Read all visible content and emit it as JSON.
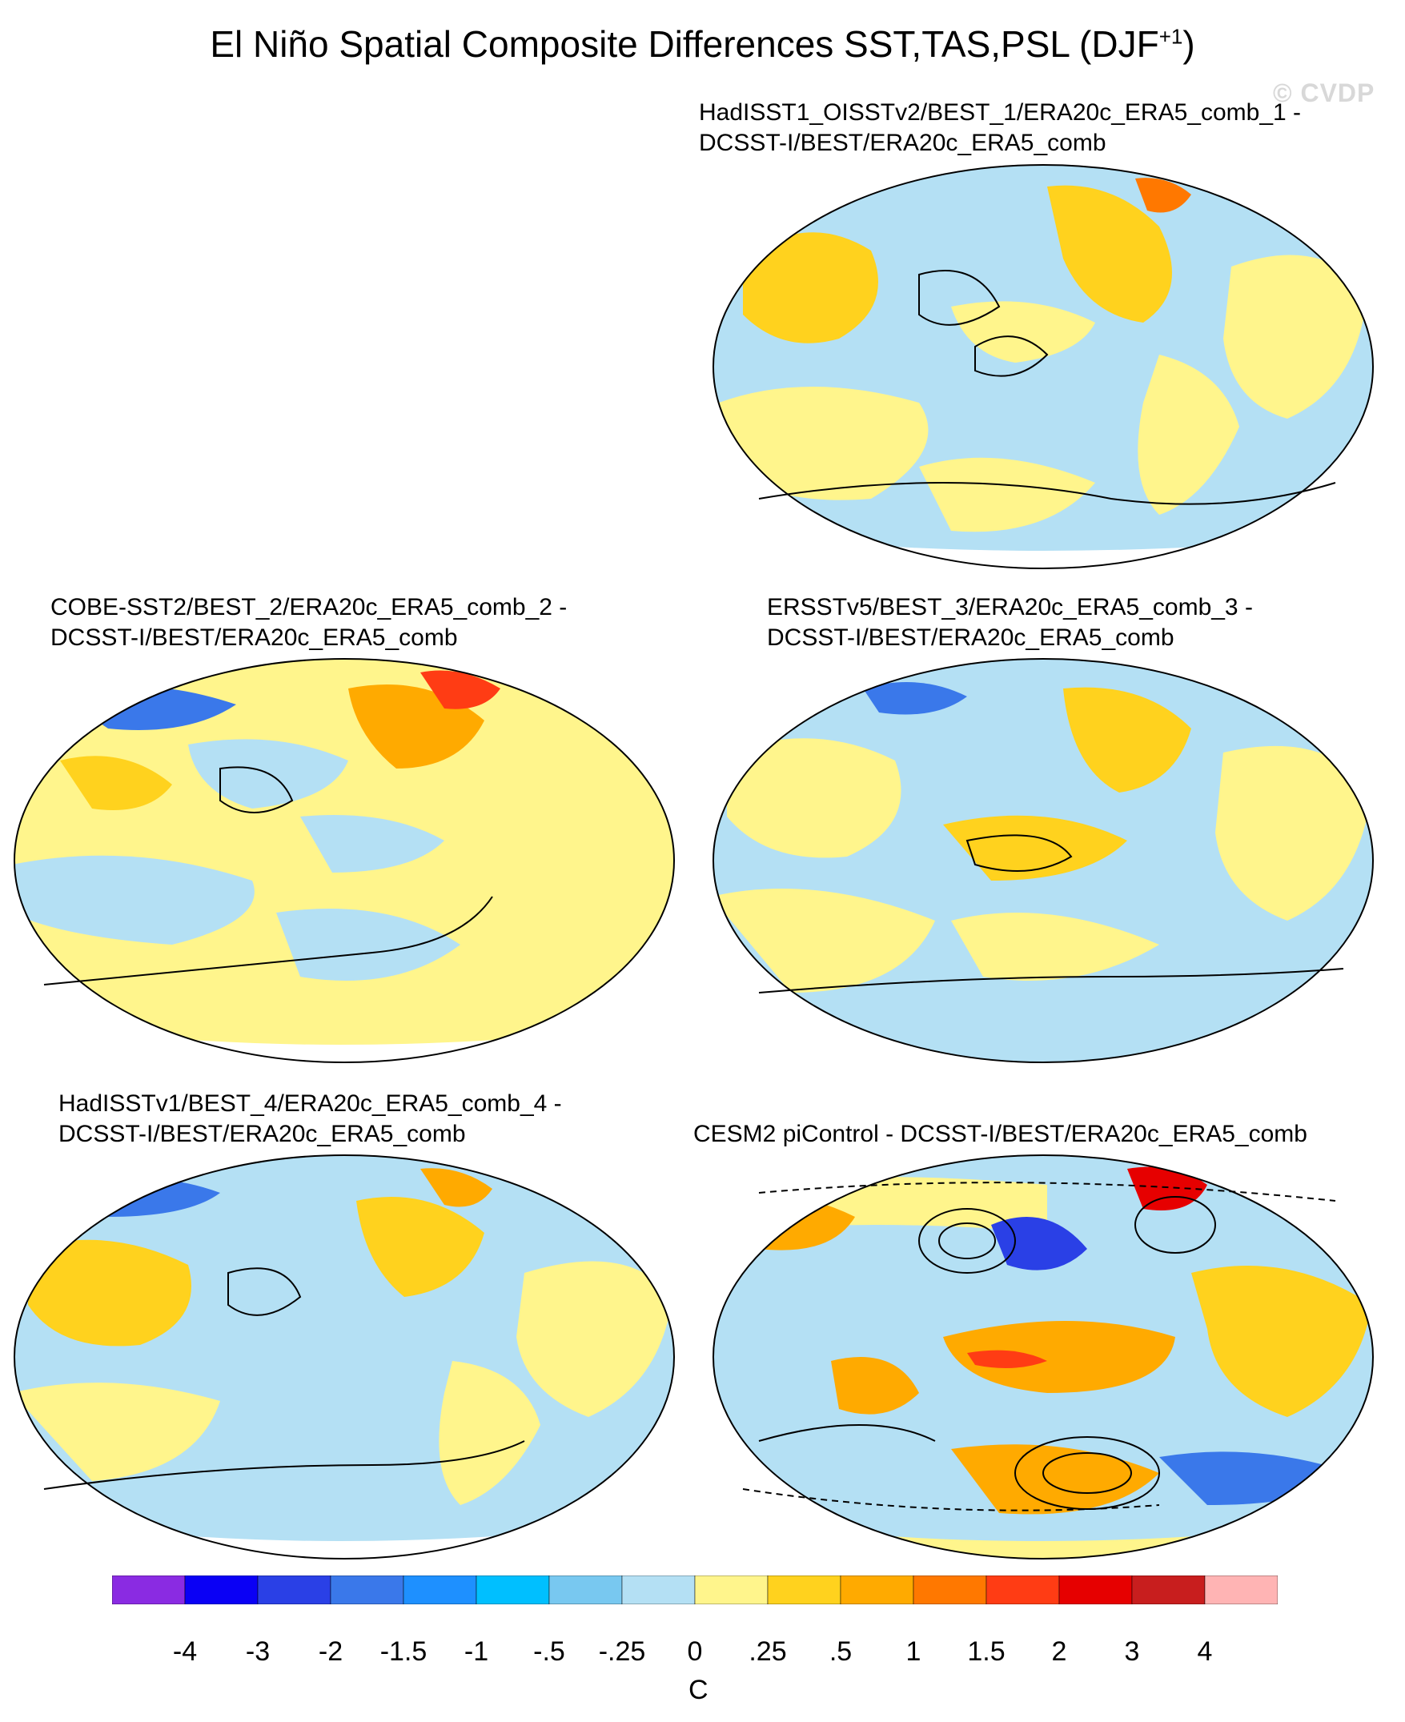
{
  "title": {
    "main": "El Niño Spatial Composite Differences SST,TAS,PSL (DJF",
    "superscript": "+1",
    "close": ")"
  },
  "watermark": "© CVDP",
  "panels": [
    {
      "id": "p1",
      "line1": "HadISST1_OISSTv2/BEST_1/ERA20c_ERA5_comb_1 -",
      "line2": "DCSST-I/BEST/ERA20c_ERA5_comb"
    },
    {
      "id": "p2",
      "line1": "COBE-SST2/BEST_2/ERA20c_ERA5_comb_2 -",
      "line2": "DCSST-I/BEST/ERA20c_ERA5_comb"
    },
    {
      "id": "p3",
      "line1": "ERSSTv5/BEST_3/ERA20c_ERA5_comb_3 -",
      "line2": "DCSST-I/BEST/ERA20c_ERA5_comb"
    },
    {
      "id": "p4",
      "line1": "HadISSTv1/BEST_4/ERA20c_ERA5_comb_4 -",
      "line2": "DCSST-I/BEST/ERA20c_ERA5_comb"
    },
    {
      "id": "p5",
      "line1": "CESM2 piControl - DCSST-I/BEST/ERA20c_ERA5_comb",
      "line2": ""
    }
  ],
  "colorbar": {
    "unit": "C",
    "labels": [
      "-4",
      "-3",
      "-2",
      "-1.5",
      "-1",
      "-.5",
      "-.25",
      "0",
      ".25",
      ".5",
      "1",
      "1.5",
      "2",
      "3",
      "4"
    ],
    "colors": [
      "#8a2be2",
      "#0a00f5",
      "#2a40e6",
      "#3a78ea",
      "#1e90ff",
      "#00bfff",
      "#78c8f0",
      "#b4e0f4",
      "#fff58c",
      "#ffd21e",
      "#ffaa00",
      "#ff7800",
      "#ff3c14",
      "#e60000",
      "#c81e1e",
      "#ffb4b4"
    ]
  }
}
